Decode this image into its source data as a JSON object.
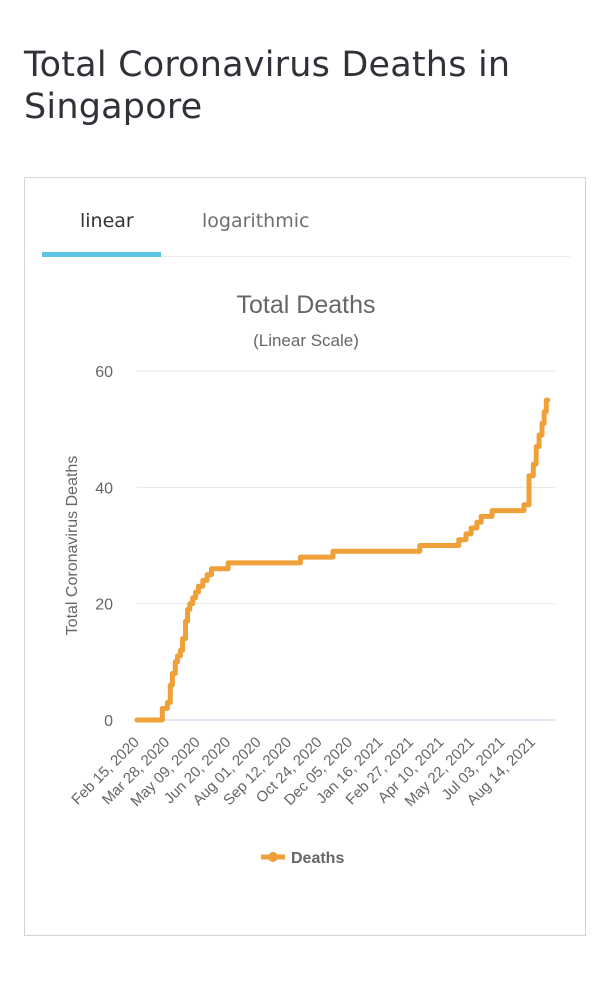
{
  "page": {
    "title": "Total Coronavirus Deaths in Singapore"
  },
  "tabs": [
    {
      "label": "linear",
      "active": true
    },
    {
      "label": "logarithmic",
      "active": false
    }
  ],
  "colors": {
    "series": "#f0a038",
    "tab_accent": "#5bc5e6",
    "grid": "#e6e6e6",
    "zero_line": "#c9cbe8"
  },
  "chart_data": {
    "type": "line",
    "title": "Total Deaths",
    "subtitle": "(Linear Scale)",
    "ylabel": "Total Coronavirus Deaths",
    "xlabel": "",
    "ylim": [
      0,
      60
    ],
    "yticks": [
      0,
      20,
      40,
      60
    ],
    "xlim": [
      "2020-02-15",
      "2021-09-15"
    ],
    "xtick_labels": [
      "Feb 15, 2020",
      "Mar 28, 2020",
      "May 09, 2020",
      "Jun 20, 2020",
      "Aug 01, 2020",
      "Sep 12, 2020",
      "Oct 24, 2020",
      "Dec 05, 2020",
      "Jan 16, 2021",
      "Feb 27, 2021",
      "Apr 10, 2021",
      "May 22, 2021",
      "Jul 03, 2021",
      "Aug 14, 2021"
    ],
    "grid": true,
    "legend_position": "bottom",
    "series": [
      {
        "name": "Deaths",
        "x": [
          "2020-02-15",
          "2020-03-20",
          "2020-03-21",
          "2020-03-28",
          "2020-04-01",
          "2020-04-04",
          "2020-04-08",
          "2020-04-11",
          "2020-04-15",
          "2020-04-18",
          "2020-04-22",
          "2020-04-25",
          "2020-04-28",
          "2020-05-02",
          "2020-05-06",
          "2020-05-10",
          "2020-05-16",
          "2020-05-22",
          "2020-05-28",
          "2020-06-02",
          "2020-06-15",
          "2020-06-20",
          "2020-09-25",
          "2020-09-28",
          "2020-11-09",
          "2020-11-12",
          "2021-03-09",
          "2021-03-12",
          "2021-05-02",
          "2021-05-05",
          "2021-05-15",
          "2021-05-22",
          "2021-05-30",
          "2021-06-05",
          "2021-06-20",
          "2021-07-10",
          "2021-07-31",
          "2021-08-03",
          "2021-08-10",
          "2021-08-16",
          "2021-08-20",
          "2021-08-24",
          "2021-08-28",
          "2021-08-31",
          "2021-09-03",
          "2021-09-05"
        ],
        "y": [
          0,
          0,
          2,
          3,
          6,
          8,
          10,
          11,
          12,
          14,
          17,
          19,
          20,
          21,
          22,
          23,
          24,
          25,
          26,
          26,
          26,
          27,
          27,
          28,
          28,
          29,
          29,
          30,
          30,
          31,
          32,
          33,
          34,
          35,
          36,
          36,
          36,
          37,
          42,
          44,
          47,
          49,
          51,
          53,
          55,
          55
        ]
      }
    ]
  }
}
